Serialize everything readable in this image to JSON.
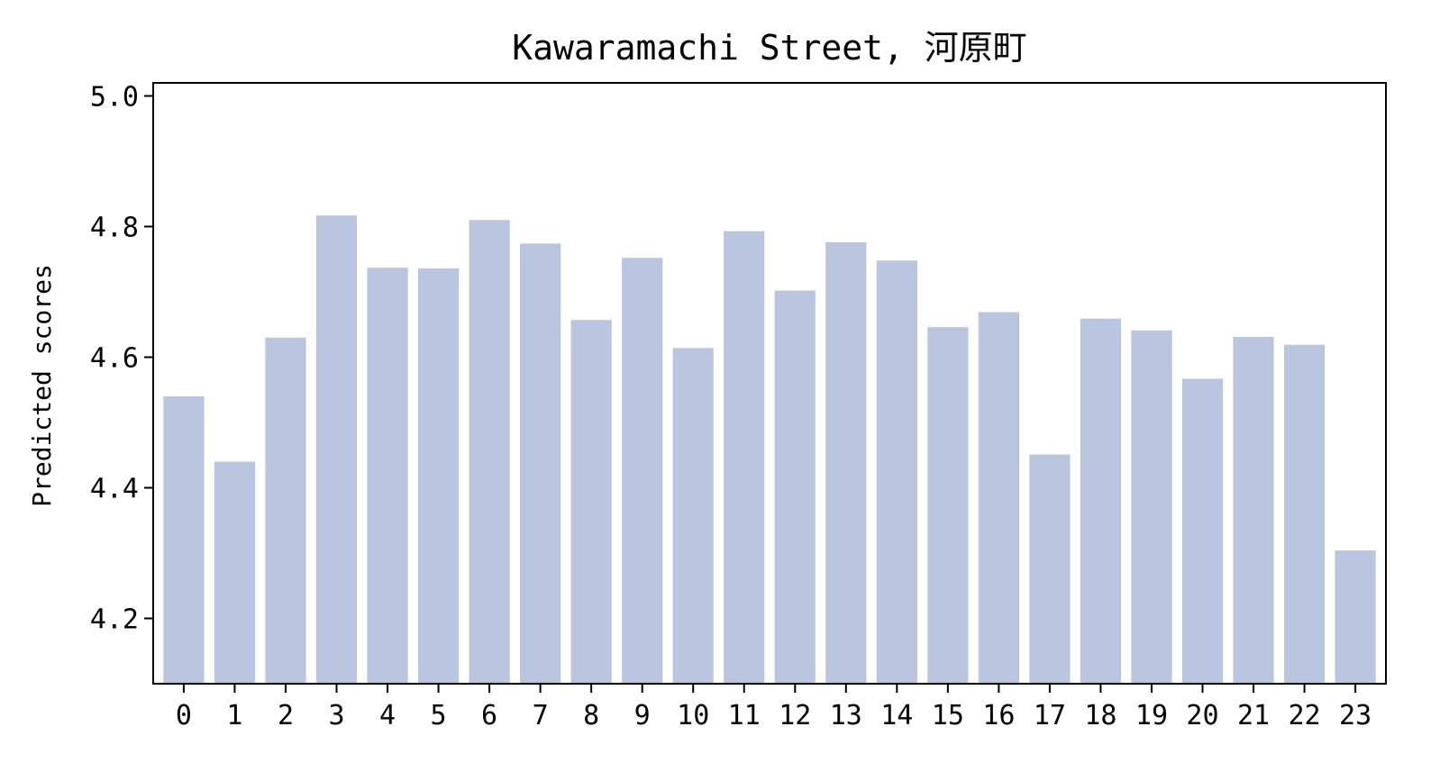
{
  "chart_data": {
    "type": "bar",
    "title": "Kawaramachi Street, 河原町",
    "xlabel": "",
    "ylabel": "Predicted scores",
    "categories": [
      "0",
      "1",
      "2",
      "3",
      "4",
      "5",
      "6",
      "7",
      "8",
      "9",
      "10",
      "11",
      "12",
      "13",
      "14",
      "15",
      "16",
      "17",
      "18",
      "19",
      "20",
      "21",
      "22",
      "23"
    ],
    "values": [
      4.54,
      4.44,
      4.63,
      4.817,
      4.737,
      4.736,
      4.81,
      4.774,
      4.657,
      4.752,
      4.614,
      4.793,
      4.702,
      4.776,
      4.748,
      4.646,
      4.669,
      4.451,
      4.659,
      4.641,
      4.567,
      4.631,
      4.619,
      4.304
    ],
    "ylim": [
      4.1,
      5.02
    ],
    "yticks": [
      "4.2",
      "4.4",
      "4.6",
      "4.8",
      "5.0"
    ],
    "grid": false,
    "bar_color": "#bac6e0"
  }
}
